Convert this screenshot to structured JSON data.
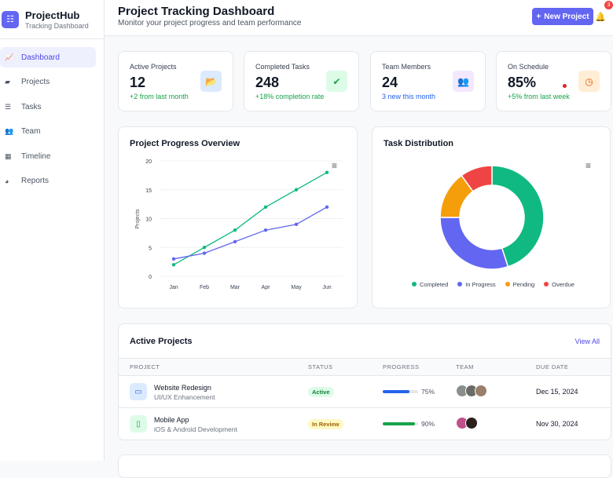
{
  "sidebar": {
    "brand": "ProjectHub",
    "subtitle": "Tracking Dashboard",
    "items": [
      {
        "label": "Dashboard",
        "icon": "chart-line-icon",
        "active": true
      },
      {
        "label": "Projects",
        "icon": "folder-icon"
      },
      {
        "label": "Tasks",
        "icon": "tasks-icon"
      },
      {
        "label": "Team",
        "icon": "users-icon"
      },
      {
        "label": "Timeline",
        "icon": "calendar-icon"
      },
      {
        "label": "Reports",
        "icon": "pie-chart-icon"
      }
    ]
  },
  "header": {
    "title": "Project Tracking Dashboard",
    "subtitle": "Monitor your project progress and team performance",
    "new_button": "New Project",
    "notifications": "3"
  },
  "stats": [
    {
      "label": "Active Projects",
      "value": "12",
      "sub": "+2 from last month",
      "sub_color": "#16a34a",
      "icon": "folder-open-icon",
      "icon_bg": "#dbeafe",
      "icon_color": "#2563eb"
    },
    {
      "label": "Completed Tasks",
      "value": "248",
      "sub": "+18% completion rate",
      "sub_color": "#16a34a",
      "icon": "check-circle-icon",
      "icon_bg": "#dcfce7",
      "icon_color": "#16a34a"
    },
    {
      "label": "Team Members",
      "value": "24",
      "sub": "3 new this month",
      "sub_color": "#2563eb",
      "icon": "users-icon",
      "icon_bg": "#f3e8ff",
      "icon_color": "#9333ea"
    },
    {
      "label": "On Schedule",
      "value": "85%",
      "sub": "+5% from last week",
      "sub_color": "#16a34a",
      "icon": "clock-icon",
      "icon_bg": "#ffedd5",
      "icon_color": "#ea580c"
    }
  ],
  "chart_data": [
    {
      "type": "line",
      "title": "Project Progress Overview",
      "ylabel": "Projects",
      "categories": [
        "Jan",
        "Feb",
        "Mar",
        "Apr",
        "May",
        "Jun"
      ],
      "ylim": [
        0,
        20
      ],
      "yticks": [
        "0",
        "5",
        "10",
        "15",
        "20"
      ],
      "grid": true,
      "series": [
        {
          "values": [
            2,
            5,
            8,
            12,
            15,
            18
          ],
          "color": "#10b981"
        },
        {
          "values": [
            3,
            4,
            6,
            8,
            9,
            12
          ],
          "color": "#6366f1"
        }
      ]
    },
    {
      "type": "pie",
      "title": "Task Distribution",
      "donut": true,
      "legend": "bottom",
      "categories": [
        "Completed",
        "In Progress",
        "Pending",
        "Overdue"
      ],
      "values": [
        45,
        30,
        15,
        10
      ],
      "colors": [
        "#10b981",
        "#6366f1",
        "#f59e0b",
        "#ef4444"
      ]
    }
  ],
  "projects": {
    "title": "Active Projects",
    "view_all": "View All",
    "columns": [
      "PROJECT",
      "STATUS",
      "PROGRESS",
      "TEAM",
      "DUE DATE"
    ],
    "rows": [
      {
        "name": "Website Redesign",
        "desc": "UI/UX Enhancement",
        "status": "Active",
        "progress": 75,
        "progress_label": "75%",
        "due": "Dec 15, 2024",
        "color": "#2563eb"
      },
      {
        "name": "Mobile App",
        "desc": "iOS & Android Development",
        "status": "In Review",
        "progress": 90,
        "progress_label": "90%",
        "due": "Nov 30, 2024",
        "color": "#16a34a"
      }
    ]
  }
}
